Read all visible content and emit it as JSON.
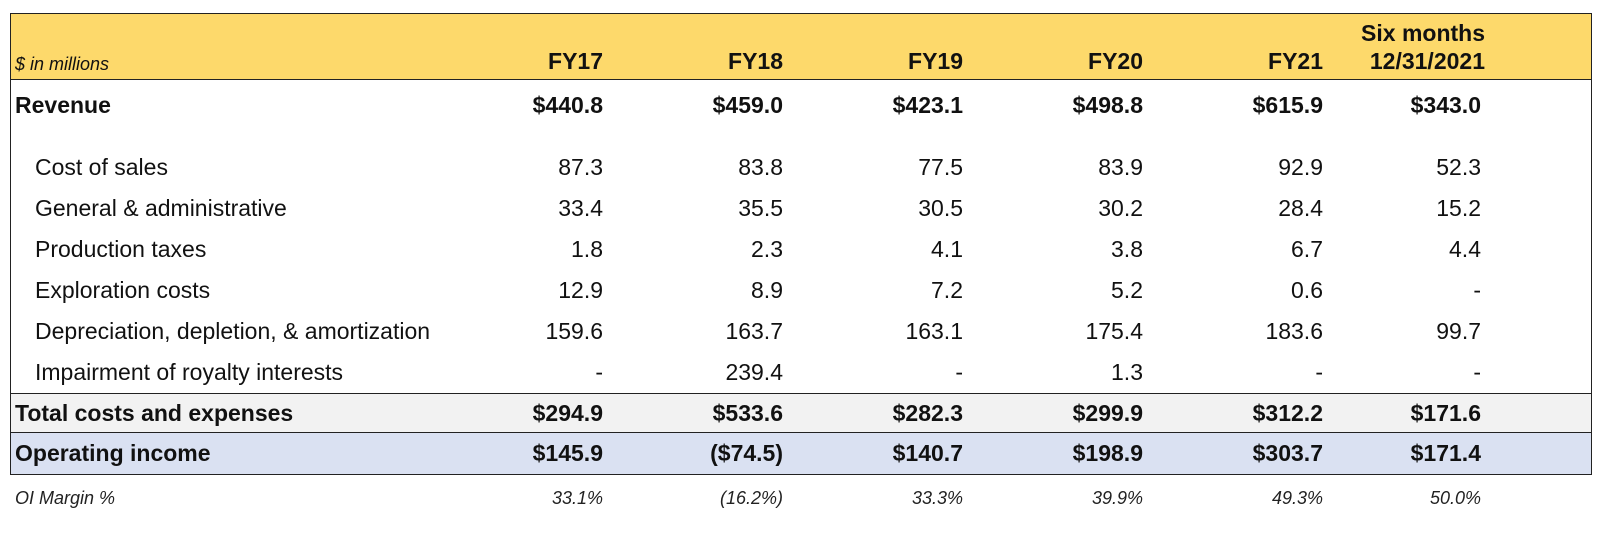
{
  "header": {
    "unit_label": "$ in millions",
    "columns": [
      "FY17",
      "FY18",
      "FY19",
      "FY20",
      "FY21"
    ],
    "last_column_line1": "Six months",
    "last_column_line2": "12/31/2021"
  },
  "revenue": {
    "label": "Revenue",
    "values": [
      "$440.8",
      "$459.0",
      "$423.1",
      "$498.8",
      "$615.9",
      "$343.0"
    ]
  },
  "lines": [
    {
      "label": "Cost of sales",
      "values": [
        "87.3",
        "83.8",
        "77.5",
        "83.9",
        "92.9",
        "52.3"
      ]
    },
    {
      "label": "General & administrative",
      "values": [
        "33.4",
        "35.5",
        "30.5",
        "30.2",
        "28.4",
        "15.2"
      ]
    },
    {
      "label": "Production taxes",
      "values": [
        "1.8",
        "2.3",
        "4.1",
        "3.8",
        "6.7",
        "4.4"
      ]
    },
    {
      "label": "Exploration costs",
      "values": [
        "12.9",
        "8.9",
        "7.2",
        "5.2",
        "0.6",
        "-"
      ]
    },
    {
      "label": "Depreciation, depletion, & amortization",
      "values": [
        "159.6",
        "163.7",
        "163.1",
        "175.4",
        "183.6",
        "99.7"
      ]
    },
    {
      "label": "Impairment of royalty interests",
      "values": [
        "-",
        "239.4",
        "-",
        "1.3",
        "-",
        "-"
      ]
    }
  ],
  "total": {
    "label": "Total costs and expenses",
    "values": [
      "$294.9",
      "$533.6",
      "$282.3",
      "$299.9",
      "$312.2",
      "$171.6"
    ]
  },
  "operating_income": {
    "label": "Operating income",
    "values": [
      "$145.9",
      "($74.5)",
      "$140.7",
      "$198.9",
      "$303.7",
      "$171.4"
    ]
  },
  "margin": {
    "label": "OI Margin %",
    "values": [
      "33.1%",
      "(16.2%)",
      "33.3%",
      "39.9%",
      "49.3%",
      "50.0%"
    ]
  },
  "colors": {
    "header_bg": "#fdd96b",
    "total_bg": "#f2f2f2",
    "operating_income_bg": "#dae1f2"
  }
}
